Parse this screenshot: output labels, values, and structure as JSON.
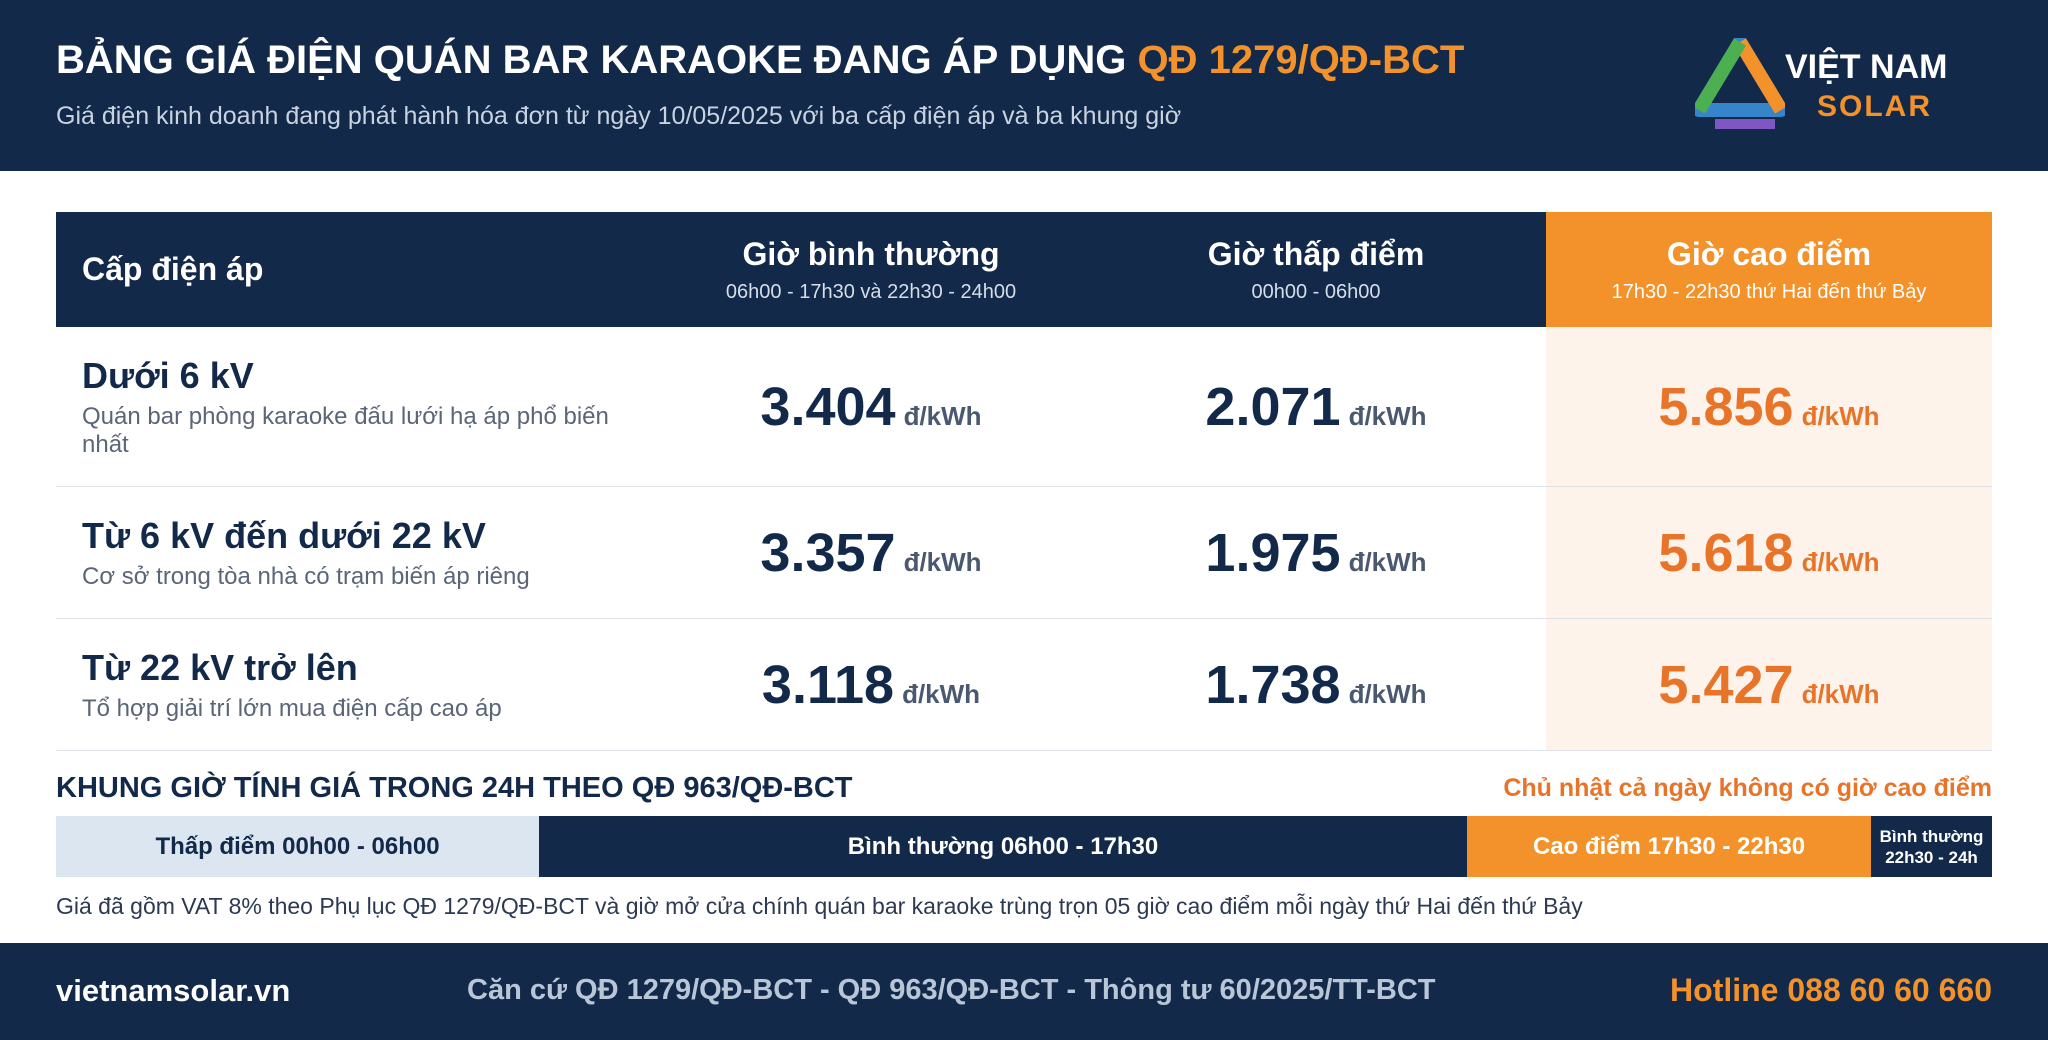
{
  "header": {
    "title": "BẢNG GIÁ ĐIỆN QUÁN BAR KARAOKE ĐANG ÁP DỤNG",
    "title_highlight": "QĐ 1279/QĐ-BCT",
    "subtitle": "Giá điện kinh doanh đang phát hành hóa đơn từ ngày 10/05/2025 với ba cấp điện áp và ba khung giờ",
    "logo": {
      "line1": "VIỆT NAM",
      "line2": "SOLAR"
    }
  },
  "table": {
    "columns": [
      {
        "title": "Cấp điện áp"
      },
      {
        "title": "Giờ bình thường",
        "sub": "06h00 - 17h30 và 22h30 - 24h00"
      },
      {
        "title": "Giờ thấp điểm",
        "sub": "00h00 - 06h00"
      },
      {
        "title": "Giờ cao điểm",
        "sub": "17h30 - 22h30 thứ Hai đến thứ Bảy"
      }
    ],
    "unit": "đ/kWh",
    "rows": [
      {
        "level": "Dưới 6 kV",
        "desc": "Quán bar phòng karaoke đấu lưới hạ áp phổ biến nhất",
        "prices": [
          "3.404",
          "2.071",
          "5.856"
        ]
      },
      {
        "level": "Từ 6 kV đến dưới 22 kV",
        "desc": "Cơ sở trong tòa nhà có trạm biến áp riêng",
        "prices": [
          "3.357",
          "1.975",
          "5.618"
        ]
      },
      {
        "level": "Từ 22 kV trở lên",
        "desc": "Tổ hợp giải trí lớn mua điện cấp cao áp",
        "prices": [
          "3.118",
          "1.738",
          "5.427"
        ]
      }
    ]
  },
  "timeline": {
    "title": "KHUNG GIỜ TÍNH GIÁ TRONG 24H THEO QĐ 963/QĐ-BCT",
    "sunday_note": "Chủ nhật cả ngày không có giờ cao điểm",
    "segments": [
      {
        "label": "Thấp điểm 00h00 - 06h00"
      },
      {
        "label": "Bình thường 06h00 - 17h30"
      },
      {
        "label": "Cao điểm 17h30 - 22h30"
      },
      {
        "label": "Bình thường",
        "sub": "22h30 - 24h"
      }
    ],
    "note": "Giá đã gồm VAT 8% theo Phụ lục QĐ 1279/QĐ-BCT và giờ mở cửa chính quán bar karaoke trùng trọn 05 giờ cao điểm mỗi ngày thứ Hai đến thứ Bảy"
  },
  "footer": {
    "website": "vietnamsolar.vn",
    "basis": "Căn cứ QĐ 1279/QĐ-BCT - QĐ 963/QĐ-BCT - Thông tư 60/2025/TT-BCT",
    "hotline": "Hotline 088 60 60 660"
  }
}
